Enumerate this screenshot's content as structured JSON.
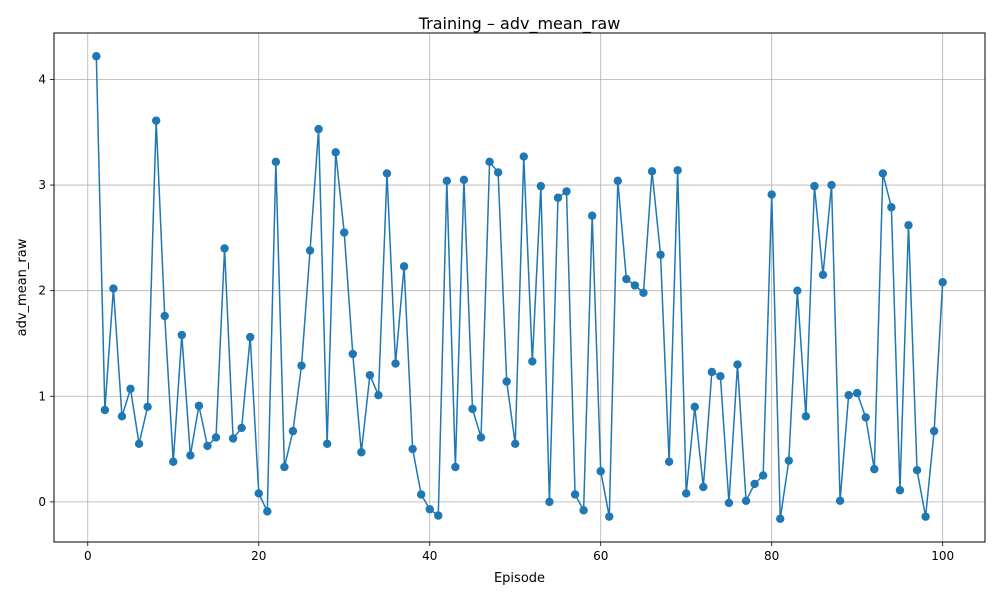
{
  "chart_data": {
    "type": "line",
    "title": "Training – adv_mean_raw",
    "xlabel": "Episode",
    "ylabel": "adv_mean_raw",
    "xlim": [
      -3.95,
      104.95
    ],
    "ylim": [
      -0.38,
      4.44
    ],
    "xticks": [
      0,
      20,
      40,
      60,
      80,
      100
    ],
    "xtick_labels": [
      "0",
      "20",
      "40",
      "60",
      "80",
      "100"
    ],
    "yticks": [
      0,
      1,
      2,
      3,
      4
    ],
    "ytick_labels": [
      "0",
      "1",
      "2",
      "3",
      "4"
    ],
    "grid": true,
    "marker": "circle",
    "color": "#1f77b4",
    "series": [
      {
        "x": [
          1,
          2,
          3,
          4,
          5,
          6,
          7,
          8,
          9,
          10,
          11,
          12,
          13,
          14,
          15,
          16,
          17,
          18,
          19,
          20,
          21,
          22,
          23,
          24,
          25,
          26,
          27,
          28,
          29,
          30,
          31,
          32,
          33,
          34,
          35,
          36,
          37,
          38,
          39,
          40,
          41,
          42,
          43,
          44,
          45,
          46,
          47,
          48,
          49,
          50,
          51,
          52,
          53,
          54,
          55,
          56,
          57,
          58,
          59,
          60,
          61,
          62,
          63,
          64,
          65,
          66,
          67,
          68,
          69,
          70,
          71,
          72,
          73,
          74,
          75,
          76,
          77,
          78,
          79,
          80,
          81,
          82,
          83,
          84,
          85,
          86,
          87,
          88,
          89,
          90,
          91,
          92,
          93,
          94,
          95,
          96,
          97,
          98,
          99,
          100
        ],
        "y": [
          4.22,
          0.87,
          2.02,
          0.81,
          1.07,
          0.55,
          0.9,
          3.61,
          1.76,
          0.38,
          1.58,
          0.44,
          0.91,
          0.53,
          0.61,
          2.4,
          0.6,
          0.7,
          1.56,
          0.08,
          -0.09,
          3.22,
          0.33,
          0.67,
          1.29,
          2.38,
          3.53,
          0.55,
          3.31,
          2.55,
          1.4,
          0.47,
          1.2,
          1.01,
          3.11,
          1.31,
          2.23,
          0.5,
          0.07,
          -0.07,
          -0.13,
          3.04,
          0.33,
          3.05,
          0.88,
          0.61,
          3.22,
          3.12,
          1.14,
          0.55,
          3.27,
          1.33,
          2.99,
          0.0,
          2.88,
          2.94,
          0.07,
          -0.08,
          2.71,
          0.29,
          -0.14,
          3.04,
          2.11,
          2.05,
          1.98,
          3.13,
          2.34,
          0.38,
          3.14,
          0.08,
          0.9,
          0.14,
          1.23,
          1.19,
          -0.01,
          1.3,
          0.01,
          0.17,
          0.25,
          2.91,
          -0.16,
          0.39,
          2.0,
          0.81,
          2.99,
          2.15,
          3.0,
          0.01,
          1.01,
          1.03,
          0.8,
          0.31,
          3.11,
          2.79,
          0.11,
          2.62,
          0.3,
          -0.14,
          0.67,
          2.08
        ]
      }
    ]
  }
}
